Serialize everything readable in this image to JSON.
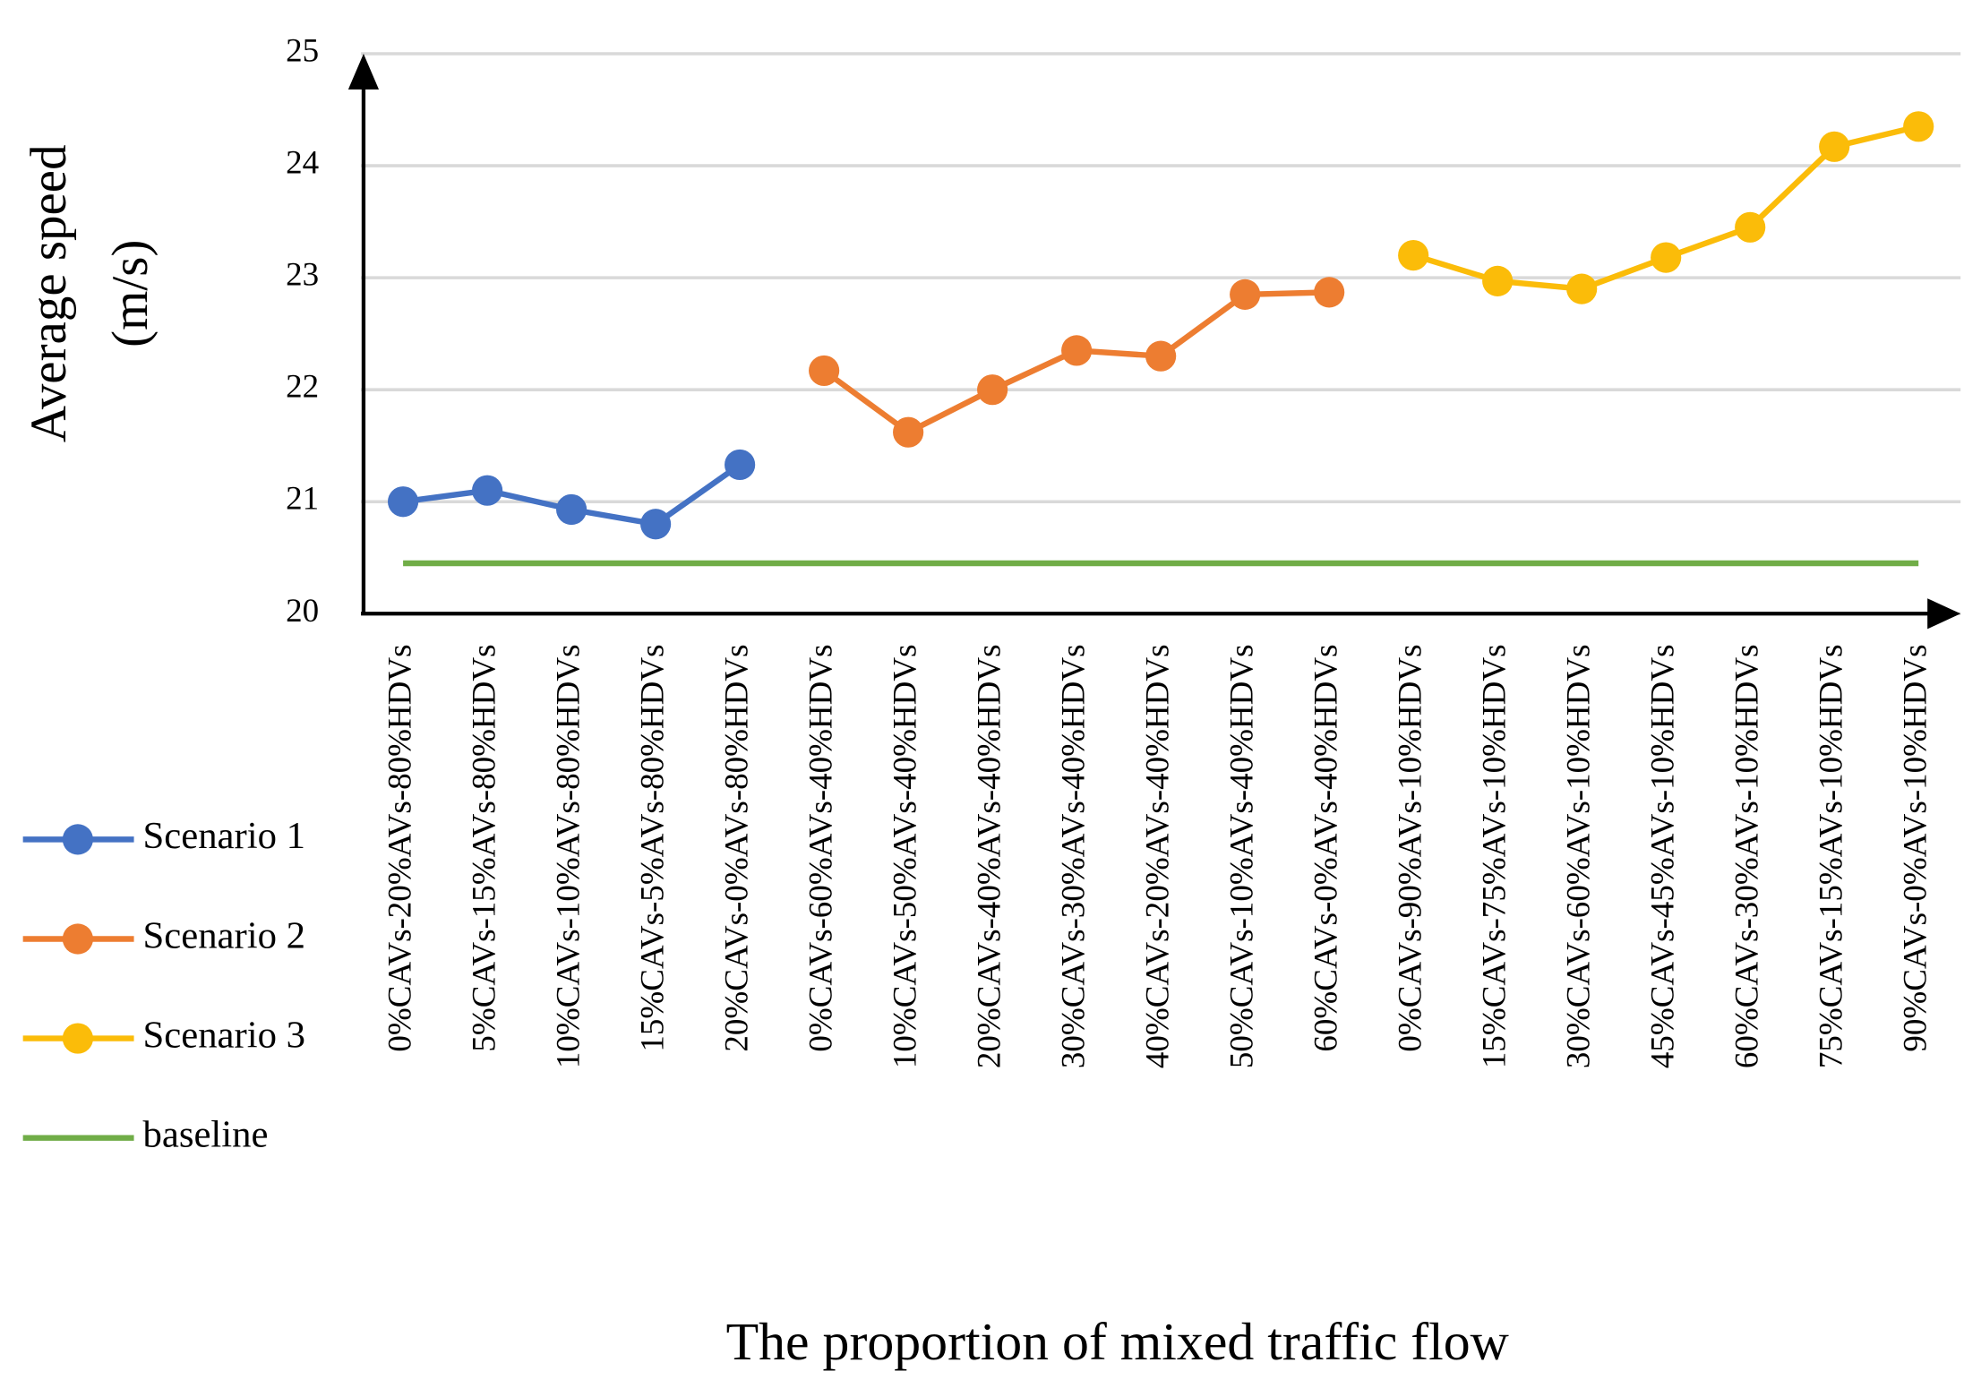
{
  "chart_data": {
    "type": "line",
    "y_label": [
      "Average speed",
      "(m/s)"
    ],
    "x_label": "The proportion of mixed traffic flow",
    "categories": [
      "0%CAVs-20%AVs-80%HDVs",
      "5%CAVs-15%AVs-80%HDVs",
      "10%CAVs-10%AVs-80%HDVs",
      "15%CAVs-5%AVs-80%HDVs",
      "20%CAVs-0%AVs-80%HDVs",
      "0%CAVs-60%AVs-40%HDVs",
      "10%CAVs-50%AVs-40%HDVs",
      "20%CAVs-40%AVs-40%HDVs",
      "30%CAVs-30%AVs-40%HDVs",
      "40%CAVs-20%AVs-40%HDVs",
      "50%CAVs-10%AVs-40%HDVs",
      "60%CAVs-0%AVs-40%HDVs",
      "0%CAVs-90%AVs-10%HDVs",
      "15%CAVs-75%AVs-10%HDVs",
      "30%CAVs-60%AVs-10%HDVs",
      "45%CAVs-45%AVs-10%HDVs",
      "60%CAVs-30%AVs-10%HDVs",
      "75%CAVs-15%AVs-10%HDVs",
      "90%CAVs-0%AVs-10%HDVs"
    ],
    "series": [
      {
        "name": "Scenario 1",
        "color": "#4472c4",
        "markers": true,
        "values": [
          21.0,
          21.1,
          20.93,
          20.8,
          21.33,
          null,
          null,
          null,
          null,
          null,
          null,
          null,
          null,
          null,
          null,
          null,
          null,
          null,
          null
        ]
      },
      {
        "name": "Scenario 2",
        "color": "#ed7d31",
        "markers": true,
        "values": [
          null,
          null,
          null,
          null,
          null,
          22.17,
          21.62,
          22.0,
          22.35,
          22.3,
          22.85,
          22.87,
          null,
          null,
          null,
          null,
          null,
          null,
          null
        ]
      },
      {
        "name": "Scenario 3",
        "color": "#fbbc09",
        "markers": true,
        "values": [
          null,
          null,
          null,
          null,
          null,
          null,
          null,
          null,
          null,
          null,
          null,
          null,
          23.2,
          22.97,
          22.9,
          23.18,
          23.45,
          24.17,
          24.35
        ]
      },
      {
        "name": "baseline",
        "color": "#70ad47",
        "markers": false,
        "values": [
          20.45,
          20.45,
          20.45,
          20.45,
          20.45,
          20.45,
          20.45,
          20.45,
          20.45,
          20.45,
          20.45,
          20.45,
          20.45,
          20.45,
          20.45,
          20.45,
          20.45,
          20.45,
          20.45
        ]
      }
    ],
    "ylim": [
      20,
      25
    ],
    "yticks": [
      20,
      21,
      22,
      23,
      24,
      25
    ],
    "grid": true,
    "legend": "left"
  }
}
